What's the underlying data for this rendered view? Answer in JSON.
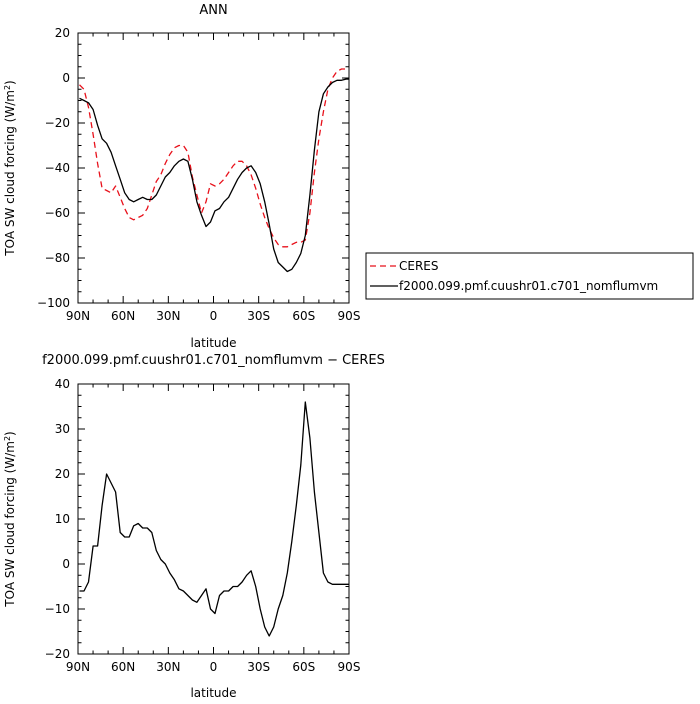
{
  "chart_data": [
    {
      "type": "line",
      "title": "ANN",
      "xlabel": "latitude",
      "ylabel": "TOA SW cloud forcing (W/m",
      "ylabel_sup": "2",
      "ylabel_end": ")",
      "xlim": [
        90,
        -90
      ],
      "ylim": [
        -100,
        20
      ],
      "x_ticks": [
        90,
        60,
        30,
        0,
        -30,
        -60,
        -90
      ],
      "x_tick_labels": [
        "90N",
        "60N",
        "30N",
        "0",
        "30S",
        "60S",
        "90S"
      ],
      "y_ticks": [
        -100,
        -80,
        -60,
        -40,
        -20,
        0,
        20
      ],
      "y_tick_labels": [
        "−100",
        "−80",
        "−60",
        "−40",
        "−20",
        "0",
        "20"
      ],
      "legend_position": "right",
      "series": [
        {
          "name": "CERES",
          "color": "#e8111b",
          "dash": "dashed",
          "x": [
            89,
            86,
            83,
            80,
            77,
            74,
            71,
            68,
            65,
            62,
            59,
            56,
            53,
            50,
            47,
            44,
            41,
            38,
            35,
            32,
            29,
            26,
            23,
            20,
            17,
            14,
            11,
            8,
            5,
            2,
            -1,
            -4,
            -7,
            -10,
            -13,
            -16,
            -19,
            -22,
            -25,
            -28,
            -31,
            -34,
            -37,
            -40,
            -43,
            -46,
            -49,
            -52,
            -55,
            -58,
            -61,
            -64,
            -67,
            -70,
            -73,
            -76,
            -79,
            -82,
            -85,
            -88,
            -90
          ],
          "y": [
            -3,
            -5,
            -13,
            -25,
            -38,
            -49,
            -50,
            -51,
            -48,
            -53,
            -58,
            -62,
            -63,
            -62,
            -61,
            -58,
            -52,
            -46,
            -43,
            -38,
            -34,
            -31,
            -30,
            -30,
            -33,
            -44,
            -52,
            -60,
            -55,
            -47,
            -48,
            -47,
            -45,
            -42,
            -39,
            -37,
            -37,
            -39,
            -43,
            -49,
            -56,
            -62,
            -67,
            -71,
            -74,
            -75,
            -75,
            -74,
            -73,
            -73,
            -72,
            -60,
            -42,
            -27,
            -15,
            -5,
            0,
            3,
            4,
            4,
            4
          ]
        },
        {
          "name": "f2000.099.pmf.cuushr01.c701_nomflumvm",
          "color": "#000000",
          "dash": "solid",
          "x": [
            89,
            86,
            83,
            80,
            77,
            74,
            71,
            68,
            65,
            62,
            59,
            56,
            53,
            50,
            47,
            44,
            41,
            38,
            35,
            32,
            29,
            26,
            23,
            20,
            17,
            14,
            11,
            8,
            5,
            2,
            -1,
            -4,
            -7,
            -10,
            -13,
            -16,
            -19,
            -22,
            -25,
            -28,
            -31,
            -34,
            -37,
            -40,
            -43,
            -46,
            -49,
            -52,
            -55,
            -58,
            -61,
            -64,
            -67,
            -70,
            -73,
            -76,
            -79,
            -82,
            -85,
            -88,
            -90
          ],
          "y": [
            -9,
            -10,
            -11,
            -14,
            -21,
            -27,
            -29,
            -33,
            -39,
            -45,
            -51,
            -54,
            -55,
            -54,
            -53,
            -54,
            -54,
            -52,
            -48,
            -44,
            -42,
            -39,
            -37,
            -36,
            -37,
            -45,
            -55,
            -61,
            -66,
            -64,
            -59,
            -58,
            -55,
            -53,
            -49,
            -45,
            -42,
            -40,
            -39,
            -42,
            -47,
            -55,
            -65,
            -76,
            -82,
            -84,
            -86,
            -85,
            -82,
            -78,
            -70,
            -52,
            -32,
            -15,
            -7,
            -4,
            -2,
            -1,
            -1,
            -0.5,
            -0.5
          ]
        }
      ]
    },
    {
      "type": "line",
      "title": "f2000.099.pmf.cuushr01.c701_nomflumvm − CERES",
      "xlabel": "latitude",
      "ylabel": "TOA SW cloud forcing (W/m",
      "ylabel_sup": "2",
      "ylabel_end": ")",
      "xlim": [
        90,
        -90
      ],
      "ylim": [
        -20,
        40
      ],
      "x_ticks": [
        90,
        60,
        30,
        0,
        -30,
        -60,
        -90
      ],
      "x_tick_labels": [
        "90N",
        "60N",
        "30N",
        "0",
        "30S",
        "60S",
        "90S"
      ],
      "y_ticks": [
        -20,
        -10,
        0,
        10,
        20,
        30,
        40
      ],
      "y_tick_labels": [
        "−20",
        "−10",
        "0",
        "10",
        "20",
        "30",
        "40"
      ],
      "series": [
        {
          "color": "#000000",
          "dash": "solid",
          "x": [
            89,
            86,
            83,
            80,
            77,
            74,
            71,
            68,
            65,
            62,
            59,
            56,
            53,
            50,
            47,
            44,
            41,
            38,
            35,
            32,
            29,
            26,
            23,
            20,
            17,
            14,
            11,
            8,
            5,
            2,
            -1,
            -4,
            -7,
            -10,
            -13,
            -16,
            -19,
            -22,
            -25,
            -28,
            -31,
            -34,
            -37,
            -40,
            -43,
            -46,
            -49,
            -52,
            -55,
            -58,
            -61,
            -64,
            -67,
            -70,
            -73,
            -76,
            -79,
            -82,
            -85,
            -88,
            -90
          ],
          "y": [
            -6,
            -6,
            -4,
            4,
            4,
            13,
            20,
            18,
            16,
            7,
            6,
            6,
            8.5,
            9,
            8,
            8,
            7,
            3,
            1,
            0,
            -2,
            -3.5,
            -5.5,
            -6,
            -7,
            -8,
            -8.5,
            -7,
            -5.5,
            -10,
            -11,
            -7,
            -6,
            -6,
            -5,
            -5,
            -4,
            -2.5,
            -1.5,
            -5,
            -10,
            -14,
            -16,
            -14,
            -10,
            -7,
            -2,
            5,
            13,
            22,
            36,
            28,
            16,
            7,
            -2,
            -4,
            -4.5,
            -4.5,
            -4.5,
            -4.5,
            -4.5
          ]
        }
      ]
    }
  ]
}
